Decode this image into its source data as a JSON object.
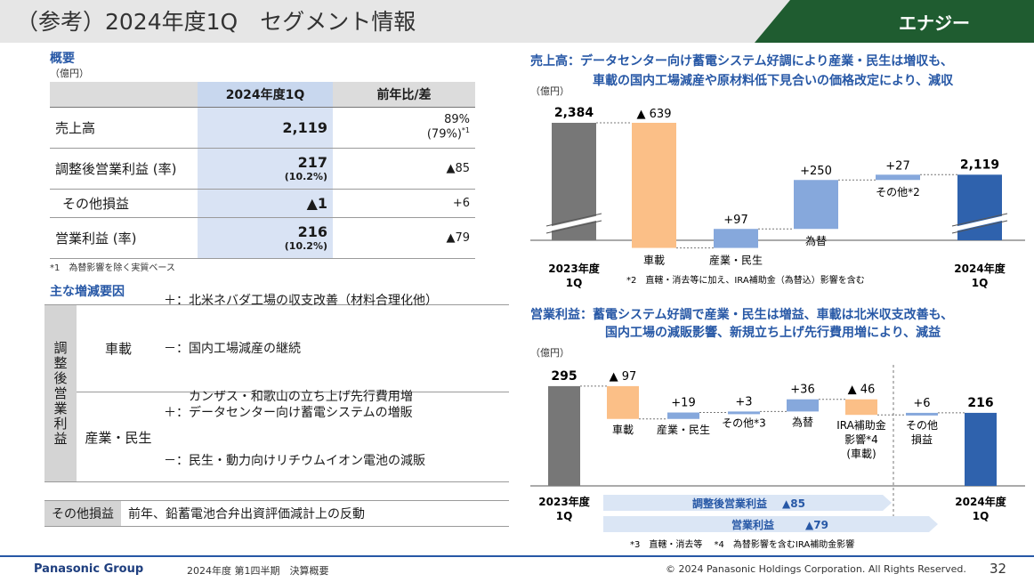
{
  "header": {
    "title": "（参考）2024年度1Q　セグメント情報",
    "segment": "エナジー"
  },
  "overview": {
    "title": "概要",
    "unit": "（億円）",
    "col_current": "2024年度1Q",
    "col_prev": "前年比/差",
    "rows": [
      {
        "label": "売上高",
        "current": "2,119",
        "current_sub": "",
        "prev": "89%",
        "prev_sub": "(79%)",
        "prev_note": "*1"
      },
      {
        "label": "調整後営業利益 (率)",
        "current": "217",
        "current_sub": "(10.2%)",
        "prev": "▲85",
        "prev_sub": "",
        "prev_note": ""
      },
      {
        "label": "その他損益",
        "current": "▲1",
        "current_sub": "",
        "prev": "+6",
        "prev_sub": "",
        "prev_note": ""
      },
      {
        "label": "営業利益 (率)",
        "current": "216",
        "current_sub": "(10.2%)",
        "prev": "▲79",
        "prev_sub": "",
        "prev_note": ""
      }
    ],
    "footnote": "*1　為替影響を除く実質ベース"
  },
  "factors": {
    "title": "主な増減要因",
    "group_label": "調整後営業利益",
    "rows": [
      {
        "category": "車載",
        "lines": [
          "＋：北米ネバダ工場の収支改善（材料合理化他）",
          "－：国内工場減産の継続",
          "　　カンザス・和歌山の立ち上げ先行費用増"
        ]
      },
      {
        "category": "産業・民生",
        "lines": [
          "＋：データセンター向け蓄電システムの増販",
          "－：民生・動力向けリチウムイオン電池の減販"
        ]
      }
    ],
    "other_label": "その他損益",
    "other_desc": "前年、鉛蓄電池合弁出資評価減計上の反動"
  },
  "chart_data": [
    {
      "type": "bar",
      "subtype": "waterfall",
      "title_prefix": "売上高：",
      "title_line1": "データセンター向け蓄電システム好調により産業・民生は増収も、",
      "title_line2": "車載の国内工場減産や原材料低下見合いの価格改定により、減収",
      "unit": "（億円）",
      "start": {
        "label_line1": "2023年度",
        "label_line2": "1Q",
        "value": 2384,
        "value_label": "2,384"
      },
      "steps": [
        {
          "name": "車載",
          "value": -639,
          "value_label": "▲ 639",
          "color": "#fbbf87"
        },
        {
          "name": "産業・民生",
          "value": 97,
          "value_label": "+97",
          "color": "#86a8dc"
        },
        {
          "name": "為替",
          "value": 250,
          "value_label": "+250",
          "color": "#86a8dc"
        },
        {
          "name": "その他",
          "note": "*2",
          "value": 27,
          "value_label": "+27",
          "color": "#86a8dc"
        }
      ],
      "end": {
        "label_line1": "2024年度",
        "label_line2": "1Q",
        "value": 2119,
        "value_label": "2,119"
      },
      "footnote": "*2　直轄・消去等に加え、IRA補助金（為替込）影響を含む",
      "colors": {
        "start": "#777777",
        "end": "#2f62ad"
      }
    },
    {
      "type": "bar",
      "subtype": "waterfall",
      "title_prefix": "営業利益：",
      "title_line1": "蓄電システム好調で産業・民生は増益、車載は北米収支改善も、",
      "title_line2": "国内工場の減販影響、新規立ち上げ先行費用増により、減益",
      "unit": "（億円）",
      "start": {
        "label_line1": "2023年度",
        "label_line2": "1Q",
        "value": 295,
        "value_label": "295"
      },
      "steps": [
        {
          "name": "車載",
          "value": -97,
          "value_label": "▲ 97",
          "color": "#fbbf87"
        },
        {
          "name": "産業・民生",
          "value": 19,
          "value_label": "+19",
          "color": "#86a8dc"
        },
        {
          "name": "その他",
          "note": "*3",
          "value": 3,
          "value_label": "+3",
          "color": "#86a8dc"
        },
        {
          "name": "為替",
          "value": 36,
          "value_label": "+36",
          "color": "#86a8dc"
        },
        {
          "name": "IRA補助金",
          "name2": "影響",
          "note": "*4",
          "name3": "(車載)",
          "value": -46,
          "value_label": "▲ 46",
          "color": "#fbbf87"
        },
        {
          "name": "その他",
          "name2": "損益",
          "value": 6,
          "value_label": "+6",
          "color": "#86a8dc"
        }
      ],
      "end": {
        "label_line1": "2024年度",
        "label_line2": "1Q",
        "value": 216,
        "value_label": "216"
      },
      "arrows": [
        {
          "label": "調整後営業利益",
          "value": "▲85"
        },
        {
          "label": "営業利益",
          "value": "▲79"
        }
      ],
      "footnote": "*3　直轄・消去等　 *4　為替影響を含むIRA補助金影響",
      "colors": {
        "start": "#777777",
        "end": "#2f62ad"
      }
    }
  ],
  "footer": {
    "logo": "Panasonic Group",
    "period": "2024年度 第1四半期　決算概要",
    "copyright": "© 2024 Panasonic Holdings Corporation. All Rights Reserved.",
    "page": "32"
  }
}
